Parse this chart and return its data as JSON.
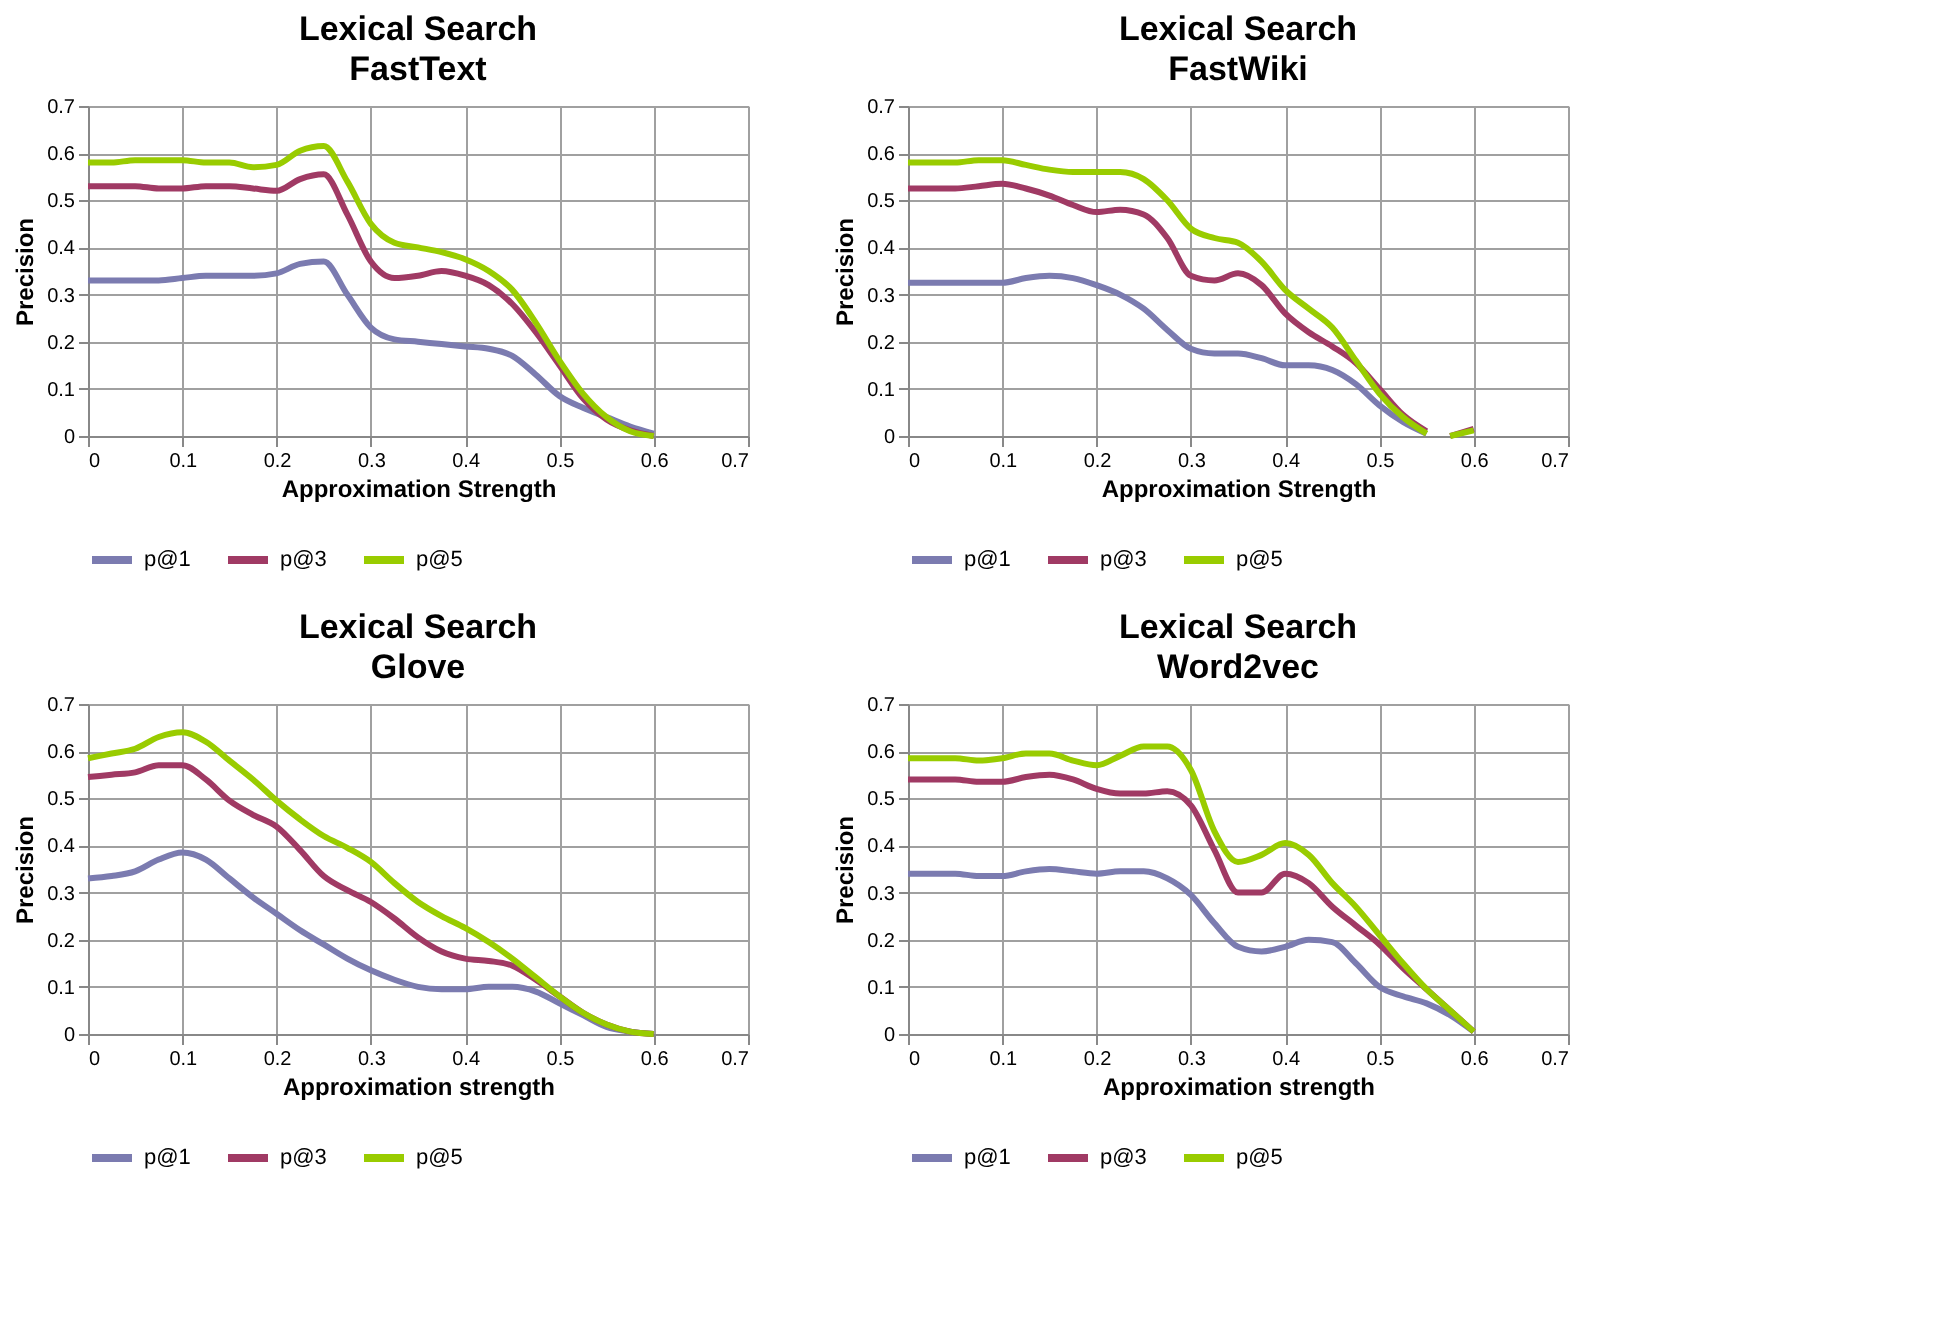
{
  "chart_data": [
    {
      "type": "line",
      "title": "Lexical Search",
      "subtitle": "FastText",
      "xlabel": "Approximation Strength",
      "ylabel": "Precision",
      "x": [
        0,
        0.025,
        0.05,
        0.075,
        0.1,
        0.125,
        0.15,
        0.175,
        0.2,
        0.225,
        0.25,
        0.275,
        0.3,
        0.325,
        0.35,
        0.375,
        0.4,
        0.425,
        0.45,
        0.475,
        0.5,
        0.525,
        0.55,
        0.575,
        0.6
      ],
      "series": [
        {
          "name": "p@1",
          "color": "#7b7bb0",
          "values": [
            0.33,
            0.33,
            0.33,
            0.33,
            0.335,
            0.34,
            0.34,
            0.34,
            0.345,
            0.365,
            0.37,
            0.3,
            0.23,
            0.205,
            0.2,
            0.195,
            0.19,
            0.185,
            0.17,
            0.13,
            0.085,
            0.06,
            0.04,
            0.02,
            0.005
          ]
        },
        {
          "name": "p@3",
          "color": "#a03a64",
          "values": [
            0.53,
            0.53,
            0.53,
            0.525,
            0.525,
            0.53,
            0.53,
            0.525,
            0.52,
            0.545,
            0.555,
            0.47,
            0.37,
            0.335,
            0.34,
            0.35,
            0.34,
            0.32,
            0.28,
            0.22,
            0.15,
            0.08,
            0.035,
            0.012,
            0.0
          ]
        },
        {
          "name": "p@5",
          "color": "#99cc00",
          "values": [
            0.58,
            0.58,
            0.585,
            0.585,
            0.585,
            0.58,
            0.58,
            0.57,
            0.575,
            0.605,
            0.615,
            0.54,
            0.45,
            0.41,
            0.4,
            0.39,
            0.375,
            0.35,
            0.31,
            0.24,
            0.16,
            0.09,
            0.04,
            0.01,
            0.0
          ]
        }
      ],
      "xlim": [
        0,
        0.7
      ],
      "ylim": [
        0,
        0.7
      ],
      "xticks": [
        0,
        0.1,
        0.2,
        0.3,
        0.4,
        0.5,
        0.6,
        0.7
      ],
      "yticks": [
        0,
        0.1,
        0.2,
        0.3,
        0.4,
        0.5,
        0.6,
        0.7
      ],
      "grid": true,
      "legend": "bottom"
    },
    {
      "type": "line",
      "title": "Lexical Search",
      "subtitle": "FastWiki",
      "xlabel": "Approximation Strength",
      "ylabel": "Precision",
      "series": [
        {
          "name": "p@1",
          "color": "#7b7bb0",
          "x": [
            0,
            0.025,
            0.05,
            0.075,
            0.1,
            0.125,
            0.15,
            0.175,
            0.2,
            0.225,
            0.25,
            0.275,
            0.3,
            0.325,
            0.35,
            0.375,
            0.4,
            0.425,
            0.45,
            0.475,
            0.5,
            0.525,
            0.55
          ],
          "values": [
            0.325,
            0.325,
            0.325,
            0.325,
            0.325,
            0.335,
            0.34,
            0.335,
            0.32,
            0.3,
            0.27,
            0.225,
            0.185,
            0.175,
            0.175,
            0.165,
            0.15,
            0.15,
            0.14,
            0.11,
            0.065,
            0.03,
            0.005
          ]
        },
        {
          "name": "p@3",
          "color": "#a03a64",
          "x": [
            0,
            0.025,
            0.05,
            0.075,
            0.1,
            0.125,
            0.15,
            0.175,
            0.2,
            0.225,
            0.25,
            0.275,
            0.3,
            0.325,
            0.35,
            0.375,
            0.4,
            0.425,
            0.45,
            0.475,
            0.5,
            0.525,
            0.55,
            0.5625,
            0.575,
            0.6
          ],
          "values": [
            0.525,
            0.525,
            0.525,
            0.53,
            0.535,
            0.525,
            0.51,
            0.49,
            0.475,
            0.48,
            0.47,
            0.42,
            0.34,
            0.33,
            0.345,
            0.32,
            0.26,
            0.22,
            0.19,
            0.155,
            0.1,
            0.045,
            0.01,
            null,
            0.0,
            0.015
          ]
        },
        {
          "name": "p@5",
          "color": "#99cc00",
          "x": [
            0,
            0.025,
            0.05,
            0.075,
            0.1,
            0.125,
            0.15,
            0.175,
            0.2,
            0.225,
            0.25,
            0.275,
            0.3,
            0.325,
            0.35,
            0.375,
            0.4,
            0.425,
            0.45,
            0.475,
            0.5,
            0.525,
            0.55,
            0.5625,
            0.575,
            0.6
          ],
          "values": [
            0.58,
            0.58,
            0.58,
            0.585,
            0.585,
            0.575,
            0.565,
            0.56,
            0.56,
            0.56,
            0.545,
            0.5,
            0.44,
            0.42,
            0.41,
            0.37,
            0.31,
            0.27,
            0.23,
            0.16,
            0.09,
            0.04,
            0.005,
            null,
            0.0,
            0.012
          ]
        }
      ],
      "xlim": [
        0,
        0.7
      ],
      "ylim": [
        0,
        0.7
      ],
      "xticks": [
        0,
        0.1,
        0.2,
        0.3,
        0.4,
        0.5,
        0.6,
        0.7
      ],
      "yticks": [
        0,
        0.1,
        0.2,
        0.3,
        0.4,
        0.5,
        0.6,
        0.7
      ],
      "grid": true,
      "legend": "bottom"
    },
    {
      "type": "line",
      "title": "Lexical Search",
      "subtitle": "Glove",
      "xlabel": "Approximation strength",
      "ylabel": "Precision",
      "x": [
        0,
        0.025,
        0.05,
        0.075,
        0.1,
        0.125,
        0.15,
        0.175,
        0.2,
        0.225,
        0.25,
        0.275,
        0.3,
        0.325,
        0.35,
        0.375,
        0.4,
        0.425,
        0.45,
        0.475,
        0.5,
        0.525,
        0.55,
        0.575,
        0.6
      ],
      "series": [
        {
          "name": "p@1",
          "color": "#7b7bb0",
          "values": [
            0.33,
            0.335,
            0.345,
            0.37,
            0.385,
            0.37,
            0.33,
            0.29,
            0.255,
            0.22,
            0.19,
            0.16,
            0.135,
            0.115,
            0.1,
            0.095,
            0.095,
            0.1,
            0.1,
            0.09,
            0.065,
            0.04,
            0.015,
            0.005,
            0.0
          ]
        },
        {
          "name": "p@3",
          "color": "#a03a64",
          "values": [
            0.545,
            0.55,
            0.555,
            0.57,
            0.57,
            0.54,
            0.495,
            0.465,
            0.44,
            0.39,
            0.335,
            0.305,
            0.28,
            0.245,
            0.205,
            0.175,
            0.16,
            0.155,
            0.145,
            0.115,
            0.08,
            0.045,
            0.02,
            0.005,
            0.0
          ]
        },
        {
          "name": "p@5",
          "color": "#99cc00",
          "values": [
            0.585,
            0.595,
            0.605,
            0.63,
            0.64,
            0.62,
            0.58,
            0.54,
            0.495,
            0.455,
            0.42,
            0.395,
            0.365,
            0.32,
            0.28,
            0.25,
            0.225,
            0.195,
            0.16,
            0.12,
            0.08,
            0.045,
            0.02,
            0.005,
            0.0
          ]
        }
      ],
      "xlim": [
        0,
        0.7
      ],
      "ylim": [
        0,
        0.7
      ],
      "xticks": [
        0,
        0.1,
        0.2,
        0.3,
        0.4,
        0.5,
        0.6,
        0.7
      ],
      "yticks": [
        0,
        0.1,
        0.2,
        0.3,
        0.4,
        0.5,
        0.6,
        0.7
      ],
      "grid": true,
      "legend": "bottom"
    },
    {
      "type": "line",
      "title": "Lexical Search",
      "subtitle": "Word2vec",
      "xlabel": "Approximation strength",
      "ylabel": "Precision",
      "x": [
        0,
        0.025,
        0.05,
        0.075,
        0.1,
        0.125,
        0.15,
        0.175,
        0.2,
        0.225,
        0.25,
        0.275,
        0.3,
        0.325,
        0.35,
        0.375,
        0.4,
        0.425,
        0.45,
        0.475,
        0.5,
        0.525,
        0.55,
        0.575,
        0.6
      ],
      "series": [
        {
          "name": "p@1",
          "color": "#7b7bb0",
          "values": [
            0.34,
            0.34,
            0.34,
            0.335,
            0.335,
            0.345,
            0.35,
            0.345,
            0.34,
            0.345,
            0.345,
            0.33,
            0.295,
            0.235,
            0.185,
            0.175,
            0.185,
            0.2,
            0.195,
            0.15,
            0.1,
            0.08,
            0.065,
            0.04,
            0.005
          ]
        },
        {
          "name": "p@3",
          "color": "#a03a64",
          "values": [
            0.54,
            0.54,
            0.54,
            0.535,
            0.535,
            0.545,
            0.55,
            0.54,
            0.52,
            0.51,
            0.51,
            0.515,
            0.485,
            0.39,
            0.3,
            0.3,
            0.34,
            0.32,
            0.27,
            0.23,
            0.19,
            0.14,
            0.095,
            0.05,
            0.005
          ]
        },
        {
          "name": "p@5",
          "color": "#99cc00",
          "values": [
            0.585,
            0.585,
            0.585,
            0.58,
            0.585,
            0.595,
            0.595,
            0.58,
            0.57,
            0.59,
            0.61,
            0.61,
            0.56,
            0.43,
            0.365,
            0.38,
            0.405,
            0.38,
            0.32,
            0.27,
            0.21,
            0.15,
            0.095,
            0.05,
            0.005
          ]
        }
      ],
      "xlim": [
        0,
        0.7
      ],
      "ylim": [
        0,
        0.7
      ],
      "xticks": [
        0,
        0.1,
        0.2,
        0.3,
        0.4,
        0.5,
        0.6,
        0.7
      ],
      "yticks": [
        0,
        0.1,
        0.2,
        0.3,
        0.4,
        0.5,
        0.6,
        0.7
      ],
      "grid": true,
      "legend": "bottom"
    }
  ]
}
